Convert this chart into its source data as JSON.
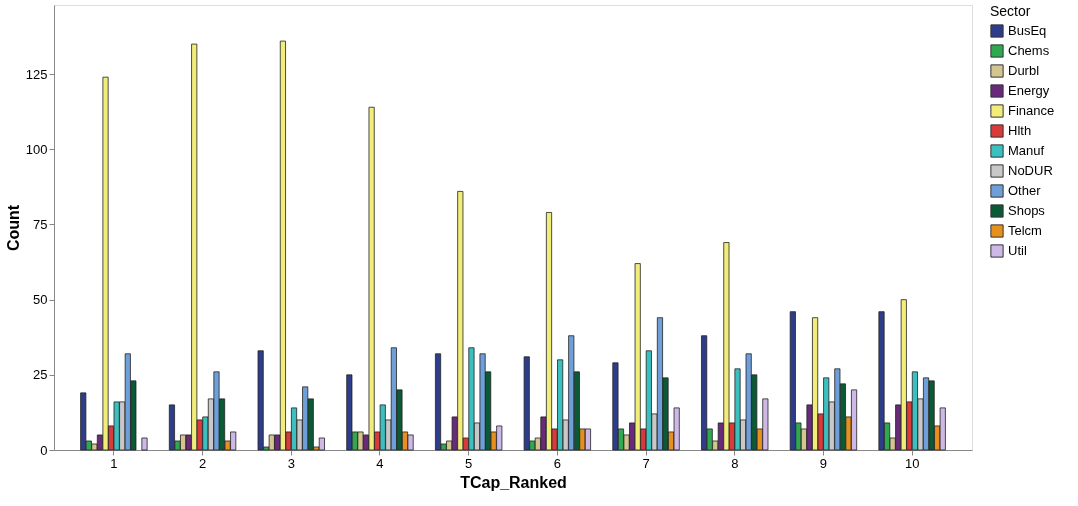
{
  "chart_data": {
    "type": "bar",
    "xlabel": "TCap_Ranked",
    "ylabel": "Count",
    "legend_title": "Sector",
    "legend": "right",
    "grid": false,
    "categories": [
      "1",
      "2",
      "3",
      "4",
      "5",
      "6",
      "7",
      "8",
      "9",
      "10"
    ],
    "ylim": [
      0,
      148
    ],
    "yticks": [
      0,
      25,
      50,
      75,
      100,
      125
    ],
    "series": [
      {
        "name": "BusEq",
        "color": "#2e3d8a",
        "values": [
          19,
          15,
          33,
          25,
          32,
          31,
          29,
          38,
          46,
          46
        ]
      },
      {
        "name": "Chems",
        "color": "#2fa84f",
        "values": [
          3,
          3,
          1,
          6,
          2,
          3,
          7,
          7,
          9,
          9
        ]
      },
      {
        "name": "Durbl",
        "color": "#d4c48f",
        "values": [
          2,
          5,
          5,
          6,
          3,
          4,
          5,
          3,
          7,
          4
        ]
      },
      {
        "name": "Energy",
        "color": "#6a2a7a",
        "values": [
          5,
          5,
          5,
          5,
          11,
          11,
          9,
          9,
          15,
          15
        ]
      },
      {
        "name": "Finance",
        "color": "#f2ec7a",
        "values": [
          124,
          135,
          136,
          114,
          86,
          79,
          62,
          69,
          44,
          50
        ]
      },
      {
        "name": "Hlth",
        "color": "#d93a3a",
        "values": [
          8,
          10,
          6,
          6,
          4,
          7,
          7,
          9,
          12,
          16
        ]
      },
      {
        "name": "Manuf",
        "color": "#3cbfbf",
        "values": [
          16,
          11,
          14,
          15,
          34,
          30,
          33,
          27,
          24,
          26
        ]
      },
      {
        "name": "NoDUR",
        "color": "#c8c8c8",
        "values": [
          16,
          17,
          10,
          10,
          9,
          10,
          12,
          10,
          16,
          17
        ]
      },
      {
        "name": "Other",
        "color": "#6f9fd8",
        "values": [
          32,
          26,
          21,
          34,
          32,
          38,
          44,
          32,
          27,
          24
        ]
      },
      {
        "name": "Shops",
        "color": "#0b5a35",
        "values": [
          23,
          17,
          17,
          20,
          26,
          26,
          24,
          25,
          22,
          23
        ]
      },
      {
        "name": "Telcm",
        "color": "#e8901e",
        "values": [
          null,
          3,
          1,
          6,
          6,
          7,
          6,
          7,
          11,
          8
        ]
      },
      {
        "name": "Util",
        "color": "#cdb8e6",
        "values": [
          4,
          6,
          4,
          5,
          8,
          7,
          14,
          17,
          20,
          14
        ]
      }
    ]
  }
}
